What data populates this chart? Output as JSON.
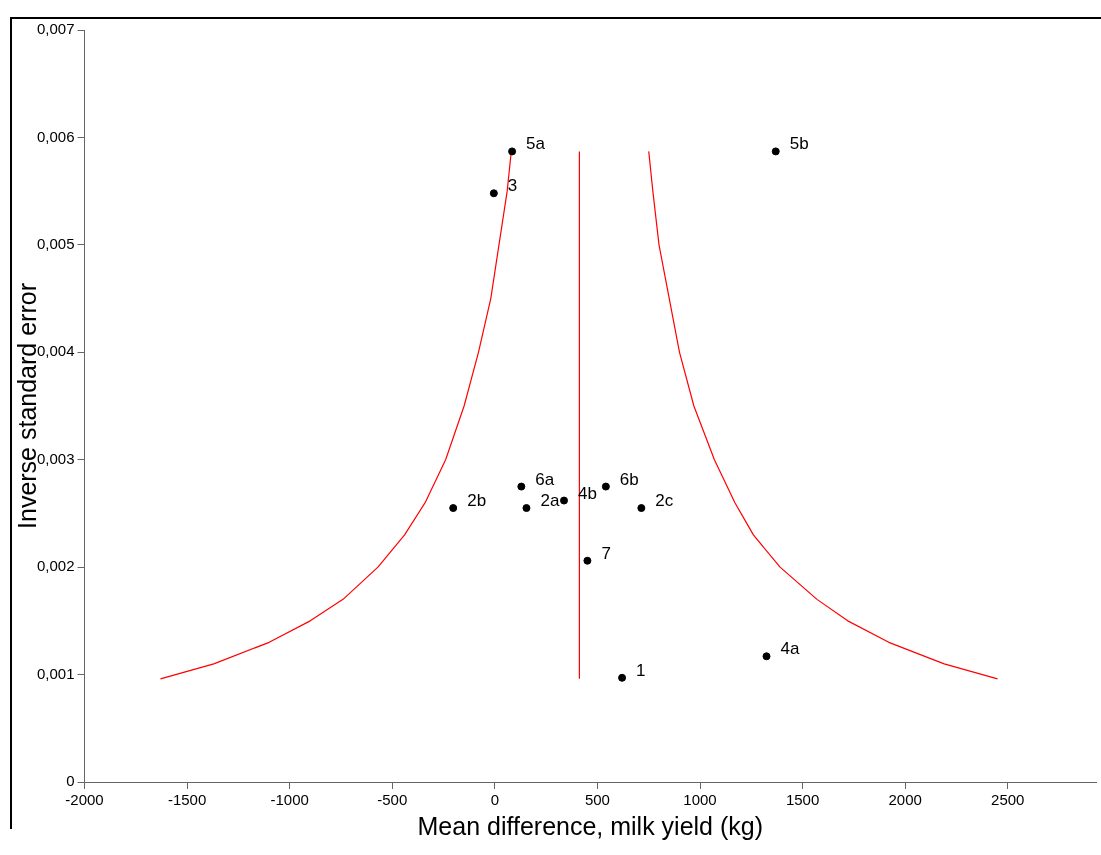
{
  "chart_data": {
    "type": "scatter",
    "xlabel": "Mean difference, milk yield (kg)",
    "ylabel": "Inverse standard error",
    "xlim": [
      -2000,
      2930
    ],
    "xticks": [
      -2000,
      -1500,
      -1000,
      -500,
      0,
      500,
      1000,
      1500,
      2000,
      2500
    ],
    "ylim": [
      0,
      0.007
    ],
    "yticks": [
      0,
      {
        "value": 0.001,
        "label": "0,001"
      },
      {
        "value": 0.002,
        "label": "0,002"
      },
      {
        "value": 0.003,
        "label": "0,003"
      },
      {
        "value": 0.004,
        "label": "0,004"
      },
      {
        "value": 0.005,
        "label": "0,005"
      },
      {
        "value": 0.006,
        "label": "0,006"
      },
      {
        "value": 0.007,
        "label": "0,007"
      }
    ],
    "grid": false,
    "legend": false,
    "marker": "circle",
    "series": [
      {
        "type": "scatter",
        "color": "#000000",
        "x": [
          620,
          -203,
          154,
          714,
          -5,
          1324,
          337,
          84,
          1369,
          129,
          541,
          451
        ],
        "values": [
          0.00097,
          0.00255,
          0.00255,
          0.00255,
          0.00548,
          0.00117,
          0.00262,
          0.00587,
          0.00587,
          0.00275,
          0.00275,
          0.00206
        ]
      },
      {
        "type": "line",
        "color": "#ff0000",
        "marker": "none",
        "x": [
          -1630,
          -1370,
          -1100,
          -900,
          -740,
          -570,
          -440,
          -340,
          -240,
          -150,
          -80,
          -20,
          20,
          60,
          80
        ],
        "values": [
          0.00096,
          0.0011,
          0.0013,
          0.0015,
          0.0017,
          0.002,
          0.0023,
          0.0026,
          0.003,
          0.0035,
          0.004,
          0.0045,
          0.005,
          0.0055,
          0.00587
        ]
      },
      {
        "type": "line",
        "color": "#ff0000",
        "marker": "none",
        "x": [
          2450,
          2190,
          1920,
          1720,
          1570,
          1390,
          1260,
          1170,
          1070,
          970,
          900,
          850,
          800,
          770,
          750
        ],
        "values": [
          0.00096,
          0.0011,
          0.0013,
          0.0015,
          0.0017,
          0.002,
          0.0023,
          0.0026,
          0.003,
          0.0035,
          0.004,
          0.0045,
          0.005,
          0.0055,
          0.00587
        ]
      },
      {
        "type": "line",
        "color": "#ff0000",
        "marker": "none",
        "x": [
          412,
          412
        ],
        "values": [
          0.00096,
          0.00587
        ]
      }
    ],
    "annotations": [
      {
        "text": "1",
        "x": 620,
        "y": 0.00097
      },
      {
        "text": "2b",
        "x": -203,
        "y": 0.00255
      },
      {
        "text": "2a",
        "x": 154,
        "y": 0.00255
      },
      {
        "text": "2c",
        "x": 714,
        "y": 0.00255
      },
      {
        "text": "3",
        "x": -5,
        "y": 0.00548
      },
      {
        "text": "4a",
        "x": 1324,
        "y": 0.00117
      },
      {
        "text": "4b",
        "x": 337,
        "y": 0.00262
      },
      {
        "text": "5a",
        "x": 84,
        "y": 0.00587
      },
      {
        "text": "5b",
        "x": 1369,
        "y": 0.00587
      },
      {
        "text": "6a",
        "x": 129,
        "y": 0.00275
      },
      {
        "text": "6b",
        "x": 541,
        "y": 0.00275
      },
      {
        "text": "7",
        "x": 451,
        "y": 0.00206
      }
    ]
  }
}
